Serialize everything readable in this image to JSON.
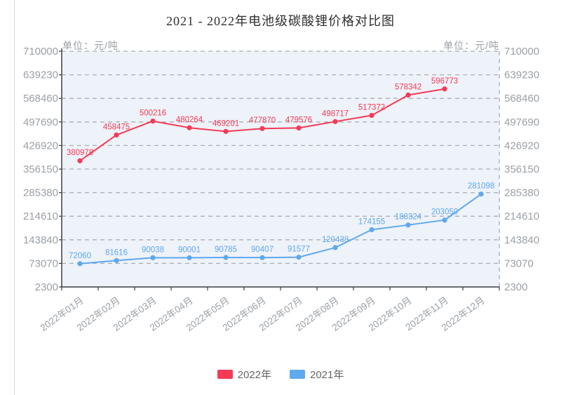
{
  "chart_data": {
    "type": "line",
    "title": "2021 - 2022年电池级碳酸锂价格对比图",
    "unit_label_left": "单位：元/吨",
    "unit_label_right": "单位：元/吨",
    "categories": [
      "2022年01月",
      "2022年02月",
      "2022年03月",
      "2022年04月",
      "2022年05月",
      "2022年06月",
      "2022年07月",
      "2022年08月",
      "2022年09月",
      "2022年10月",
      "2022年11月",
      "2022年12月"
    ],
    "y_ticks": [
      2300,
      73070,
      143840,
      214610,
      285380,
      356150,
      426920,
      497690,
      568460,
      639230,
      710000
    ],
    "ylim": [
      2300,
      710000
    ],
    "grid": "horizontal dashed lines, both-side y tick labels",
    "legend_position": "bottom-center",
    "series": [
      {
        "name": "2022年",
        "color": "#f43b55",
        "values": [
          380978,
          458475,
          500216,
          480264,
          469201,
          477870,
          479576,
          498717,
          517372,
          578342,
          596773
        ]
      },
      {
        "name": "2021年",
        "color": "#5fa9ee",
        "values": [
          72060,
          81616,
          90038,
          90001,
          90785,
          90407,
          91577,
          120438,
          174155,
          188324,
          203050,
          281098
        ]
      }
    ]
  },
  "colors": {
    "plot_background": "#eef2f9",
    "grid_line": "#a9aeb6",
    "axis_line": "#3c4043",
    "tick_label": "#9aa0a6",
    "title_text": "#2f2f2f",
    "legend_text": "#666666",
    "page_edge_line": "#dcdcdc"
  }
}
